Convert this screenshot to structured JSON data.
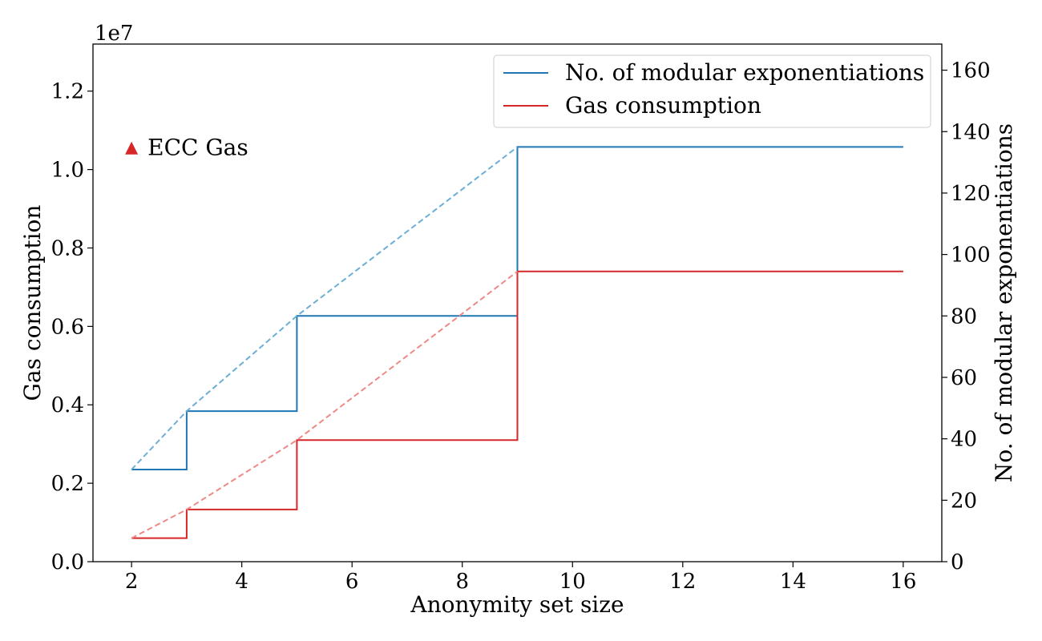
{
  "chart_data": {
    "type": "line",
    "xlabel": "Anonymity set size",
    "ylabel": "Gas consumption",
    "ylabel_right": "No. of modular exponentiations",
    "offset_text": "1e7",
    "xlim": [
      1.3,
      16.7
    ],
    "ylim": [
      0,
      1.32
    ],
    "ylim_right": [
      0,
      168.5
    ],
    "xticks": [
      2,
      4,
      6,
      8,
      10,
      12,
      14,
      16
    ],
    "yticks": [
      0.0,
      0.2,
      0.4,
      0.6,
      0.8,
      1.0,
      1.2
    ],
    "yticks_right": [
      0,
      20,
      40,
      60,
      80,
      100,
      120,
      140,
      160
    ],
    "legend_position": "top-right",
    "series": [
      {
        "name": "No. of modular exponentiations",
        "axis": "right",
        "style": "step",
        "color": "#1f77b4",
        "points": [
          [
            2,
            30
          ],
          [
            3,
            30
          ],
          [
            3,
            49
          ],
          [
            5,
            49
          ],
          [
            5,
            80
          ],
          [
            9,
            80
          ],
          [
            9,
            135
          ],
          [
            16,
            135
          ]
        ]
      },
      {
        "name": "Gas consumption",
        "axis": "left",
        "style": "step",
        "color": "#d62728",
        "points": [
          [
            2,
            0.06
          ],
          [
            3,
            0.06
          ],
          [
            3,
            0.133
          ],
          [
            5,
            0.133
          ],
          [
            5,
            0.31
          ],
          [
            9,
            0.31
          ],
          [
            9,
            0.74
          ],
          [
            16,
            0.74
          ]
        ]
      },
      {
        "axis": "right",
        "style": "dashed",
        "color": "#6baed6",
        "points": [
          [
            2,
            30
          ],
          [
            3,
            49
          ],
          [
            5,
            80
          ],
          [
            9,
            135
          ]
        ]
      },
      {
        "axis": "left",
        "style": "dashed",
        "color": "#ee8a86",
        "points": [
          [
            2,
            0.06
          ],
          [
            3,
            0.133
          ],
          [
            5,
            0.31
          ],
          [
            9,
            0.74
          ]
        ]
      }
    ],
    "annotations": [
      {
        "text": "ECC Gas",
        "x": 2,
        "y": 1.055,
        "marker": "triangle",
        "color": "#d62728"
      }
    ]
  }
}
